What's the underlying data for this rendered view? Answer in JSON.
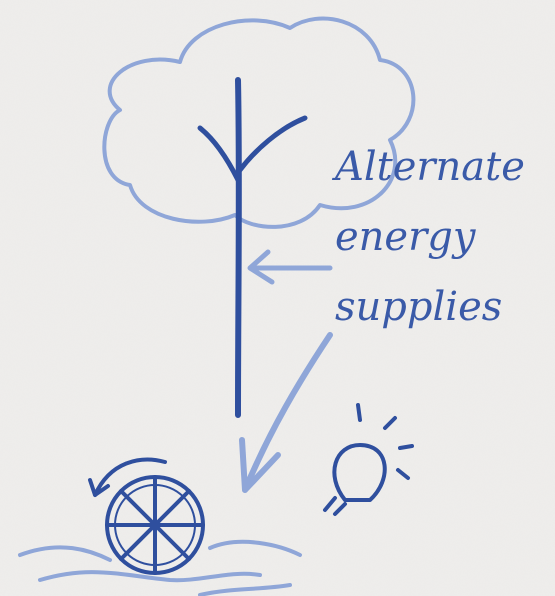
{
  "annotation": {
    "lines": [
      "Alternate",
      "energy",
      "supplies"
    ]
  }
}
